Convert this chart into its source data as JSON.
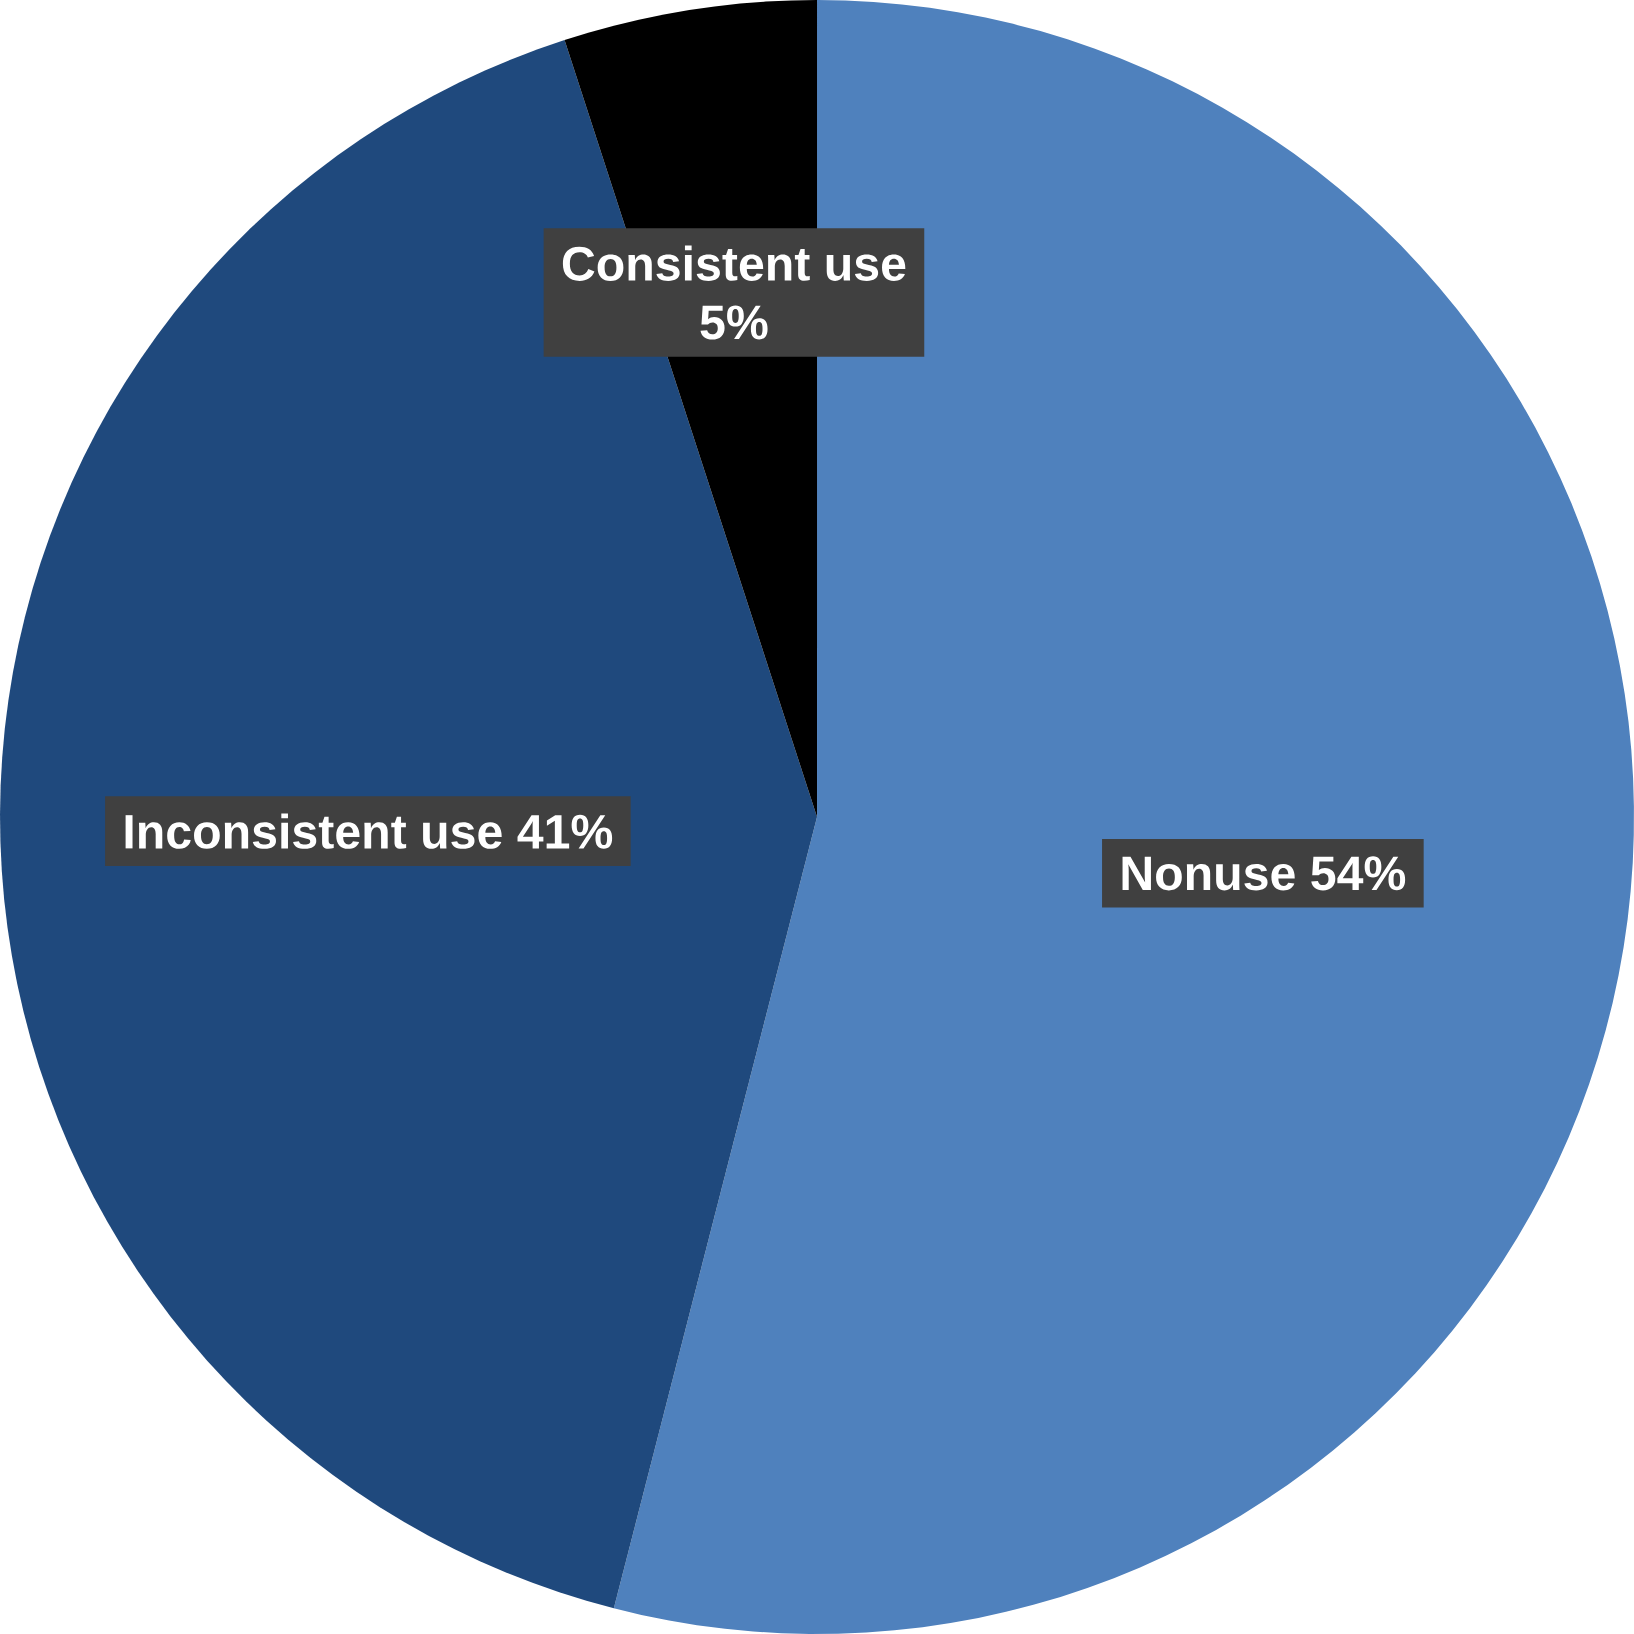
{
  "chart_data": {
    "type": "pie",
    "categories": [
      "Nonuse",
      "Inconsistent use",
      "Consistent use"
    ],
    "values": [
      54,
      41,
      5
    ],
    "value_labels": [
      "54%",
      "41%",
      "5%"
    ],
    "colors": [
      "#4f81bd",
      "#1f497d",
      "#000000"
    ]
  }
}
